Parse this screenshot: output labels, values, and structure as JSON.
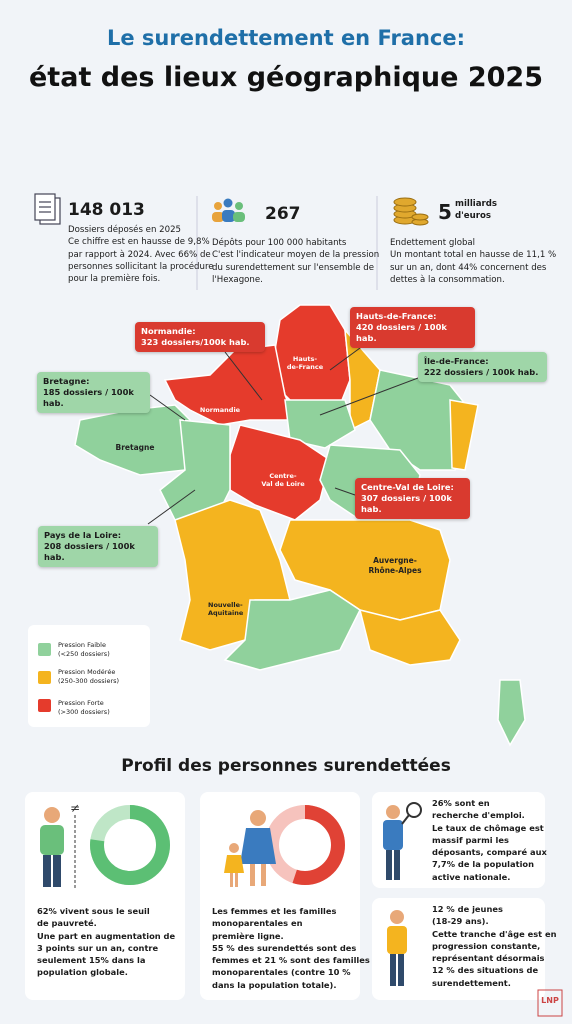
{
  "header": {
    "title_line1": "Le surendettement en France:",
    "title_line2": "état des lieux géographique 2025"
  },
  "stats": [
    {
      "value": "148 013",
      "lines": [
        "Dossiers déposés en 2025",
        "Ce chiffre est en hausse de 9,8%",
        "par rapport à 2024. Avec 66% de",
        "personnes sollicitant la procédure",
        "pour la première fois."
      ]
    },
    {
      "value": "267",
      "lines": [
        "Dépôts pour 100 000 habitants",
        "C'est l'indicateur moyen de la pression",
        "du surendettement sur l'ensemble de",
        "l'Hexagone."
      ]
    },
    {
      "value": "5",
      "unit": [
        "milliards",
        "d'euros"
      ],
      "lines": [
        "Endettement global",
        "Un montant total en hausse de 11,1 %",
        "sur un an, dont 44% concernent des",
        "dettes à la consommation."
      ]
    }
  ],
  "map": {
    "callouts": [
      {
        "title": "Normandie:",
        "text": "323 dossiers/100k hab."
      },
      {
        "title": "Hauts-de-France:",
        "text": "420 dossiers / 100k hab."
      },
      {
        "title": "Île-de-France:",
        "text": "222 dossiers / 100k hab."
      },
      {
        "title": "Bretagne:",
        "text": "185 dossiers / 100k hab."
      },
      {
        "title": "Centre-Val de Loire:",
        "text": "307 dossiers / 100k hab."
      },
      {
        "title": "Pays de la Loire:",
        "text": "208 dossiers / 100k hab."
      }
    ],
    "region_labels": [
      [
        "Hauts-",
        "de-France"
      ],
      [
        "Normandie"
      ],
      [
        "Bretagne"
      ],
      [
        "Centre-",
        "Val de Loire"
      ],
      [
        "Auvergne-",
        "Rhône-Alpes"
      ],
      [
        "Nouvelle-",
        "Aquitaine"
      ]
    ],
    "legend": [
      {
        "label": "Pression Faible",
        "range": "(<250 dossiers)"
      },
      {
        "label": "Pression Modérée",
        "range": "(250-300 dossiers)"
      },
      {
        "label": "Pression Forte",
        "range": "(>300 dossiers)"
      }
    ]
  },
  "profile": {
    "title": "Profil des personnes surendettées",
    "cards": [
      {
        "lines": [
          "62% vivent sous le seuil",
          "de pauvreté.",
          "Une part en augmentation de",
          "3 points sur un an, contre",
          "seulement 15% dans la",
          "population globale."
        ]
      },
      {
        "lines": [
          "Les femmes et les familles",
          "monoparentales en",
          "première ligne.",
          "55 % des surendettés sont des",
          "femmes et 21 % sont des familles",
          "monoparentales (contre 10 %",
          "dans la population totale)."
        ]
      },
      {
        "lines": [
          "26% sont en",
          "recherche d'emploi.",
          "Le taux de chômage est",
          "massif parmi les",
          "déposants, comparé aux",
          "7,7% de la population",
          "active nationale."
        ]
      },
      {
        "lines": [
          "12 % de jeunes",
          "(18-29 ans).",
          "Cette tranche d'âge est en",
          "progression constante,",
          "représentant désormais",
          "12 % des situations de",
          "surendettement."
        ]
      }
    ]
  },
  "logo": "LNP"
}
